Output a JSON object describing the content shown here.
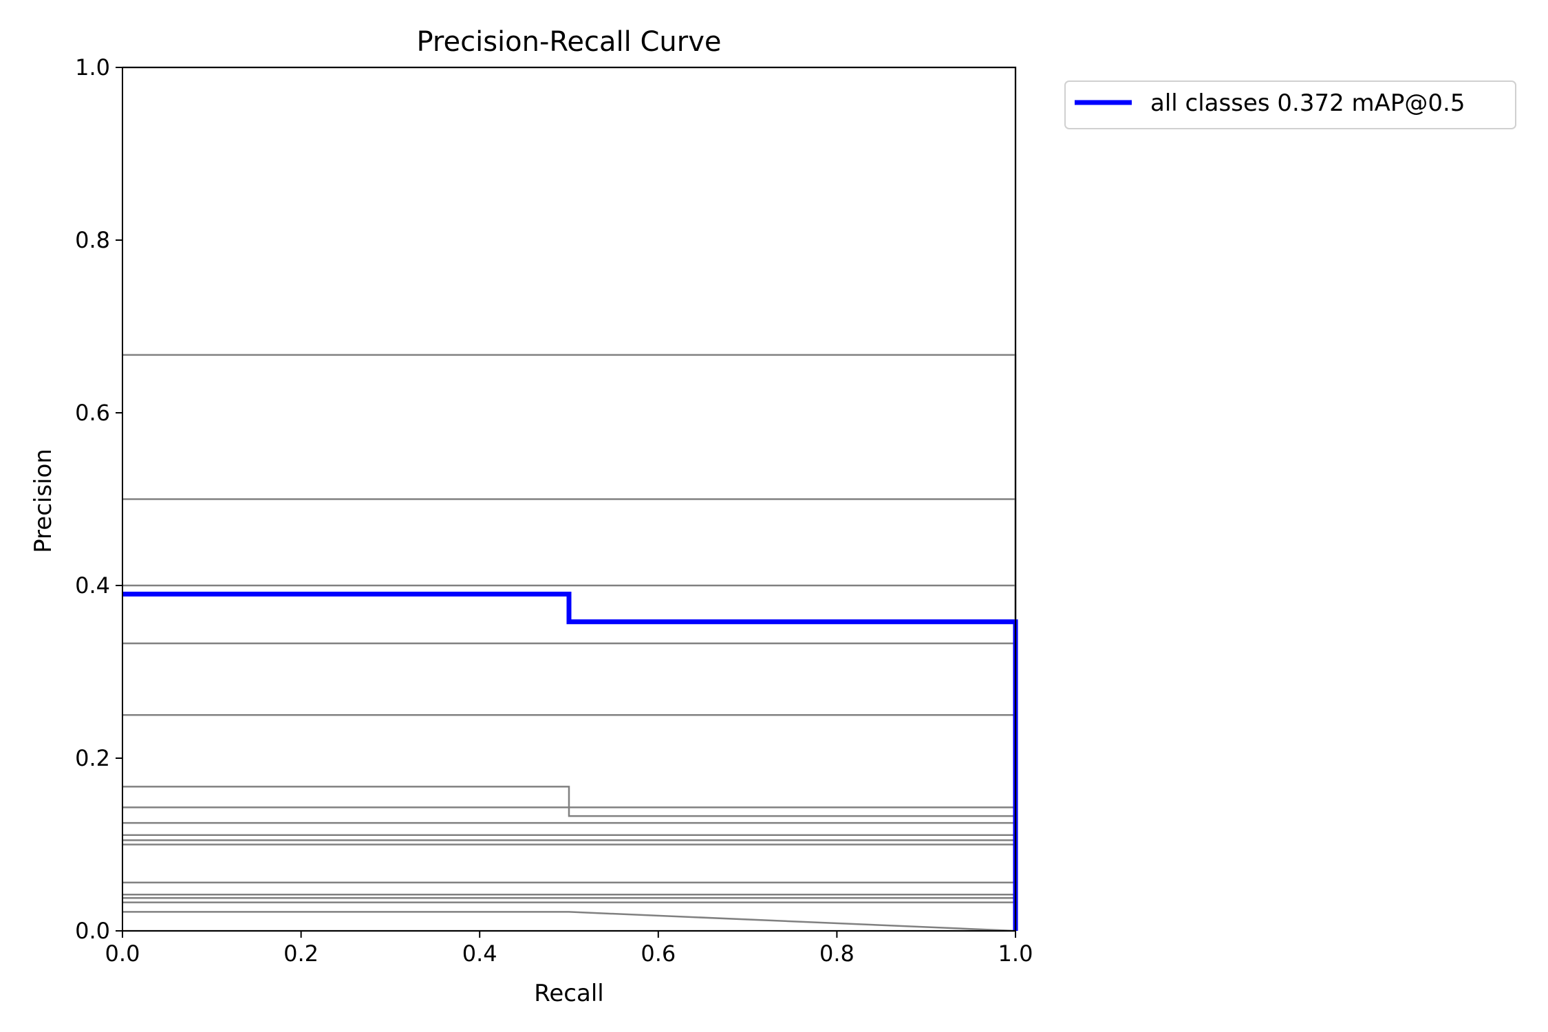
{
  "chart_data": {
    "type": "line",
    "title": "Precision-Recall Curve",
    "xlabel": "Recall",
    "ylabel": "Precision",
    "xlim": [
      0,
      1
    ],
    "ylim": [
      0,
      1
    ],
    "x_ticks": [
      "0.0",
      "0.2",
      "0.4",
      "0.6",
      "0.8",
      "1.0"
    ],
    "y_ticks": [
      "0.0",
      "0.2",
      "0.4",
      "0.6",
      "0.8",
      "1.0"
    ],
    "grid": false,
    "legend_position": "outside-top-right",
    "colors": {
      "all_classes": "#0000ff",
      "per_class": "#808080"
    },
    "per_class_series": [
      {
        "x": [
          0,
          0.5,
          0.5,
          1.0,
          1.0
        ],
        "y": [
          0.0,
          0.0,
          0.0,
          0.0,
          0.0
        ]
      },
      {
        "x": [
          0,
          0.5,
          0.5,
          1.0,
          1.0
        ],
        "y": [
          1.0,
          1.0,
          1.0,
          1.0,
          0.0
        ]
      },
      {
        "x": [
          0,
          0.5,
          0.5,
          1.0,
          1.0
        ],
        "y": [
          0.667,
          0.667,
          0.667,
          0.667,
          0.0
        ]
      },
      {
        "x": [
          0,
          0.5,
          0.5,
          1.0,
          1.0
        ],
        "y": [
          0.5,
          0.5,
          0.5,
          0.5,
          0.0
        ]
      },
      {
        "x": [
          0,
          0.5,
          0.5,
          1.0,
          1.0
        ],
        "y": [
          0.4,
          0.4,
          0.4,
          0.4,
          0.0
        ]
      },
      {
        "x": [
          0,
          0.5,
          0.5,
          1.0,
          1.0
        ],
        "y": [
          0.333,
          0.333,
          0.333,
          0.333,
          0.0
        ]
      },
      {
        "x": [
          0,
          0.5,
          0.5,
          1.0,
          1.0
        ],
        "y": [
          0.25,
          0.25,
          0.25,
          0.25,
          0.0
        ]
      },
      {
        "x": [
          0,
          0.5,
          0.5,
          1.0,
          1.0
        ],
        "y": [
          0.167,
          0.167,
          0.143,
          0.143,
          0.0
        ]
      },
      {
        "x": [
          0,
          0.5,
          0.5,
          1.0,
          1.0
        ],
        "y": [
          0.143,
          0.143,
          0.133,
          0.133,
          0.0
        ]
      },
      {
        "x": [
          0,
          0.5,
          0.5,
          1.0,
          1.0
        ],
        "y": [
          0.125,
          0.125,
          0.125,
          0.125,
          0.0
        ]
      },
      {
        "x": [
          0,
          0.5,
          0.5,
          1.0,
          1.0
        ],
        "y": [
          0.111,
          0.111,
          0.111,
          0.111,
          0.0
        ]
      },
      {
        "x": [
          0,
          0.5,
          0.5,
          1.0,
          1.0
        ],
        "y": [
          0.105,
          0.105,
          0.105,
          0.105,
          0.0
        ]
      },
      {
        "x": [
          0,
          0.5,
          0.5,
          1.0,
          1.0
        ],
        "y": [
          0.1,
          0.1,
          0.1,
          0.1,
          0.0
        ]
      },
      {
        "x": [
          0,
          0.5,
          0.5,
          1.0,
          1.0
        ],
        "y": [
          0.056,
          0.056,
          0.056,
          0.056,
          0.0
        ]
      },
      {
        "x": [
          0,
          0.5,
          0.5,
          1.0,
          1.0
        ],
        "y": [
          0.042,
          0.042,
          0.042,
          0.042,
          0.0
        ]
      },
      {
        "x": [
          0,
          0.5,
          0.5,
          1.0,
          1.0
        ],
        "y": [
          0.038,
          0.038,
          0.038,
          0.038,
          0.0
        ]
      },
      {
        "x": [
          0,
          0.5,
          0.5,
          1.0,
          1.0
        ],
        "y": [
          0.033,
          0.033,
          0.033,
          0.033,
          0.0
        ]
      },
      {
        "x": [
          0,
          0.5,
          0.5,
          1.0
        ],
        "y": [
          0.022,
          0.022,
          0.022,
          0.0
        ]
      }
    ],
    "series": [
      {
        "name": "all classes 0.372 mAP@0.5",
        "x": [
          0,
          0.5,
          0.5,
          1.0,
          1.0
        ],
        "y": [
          0.39,
          0.39,
          0.358,
          0.358,
          0.0
        ]
      }
    ]
  }
}
